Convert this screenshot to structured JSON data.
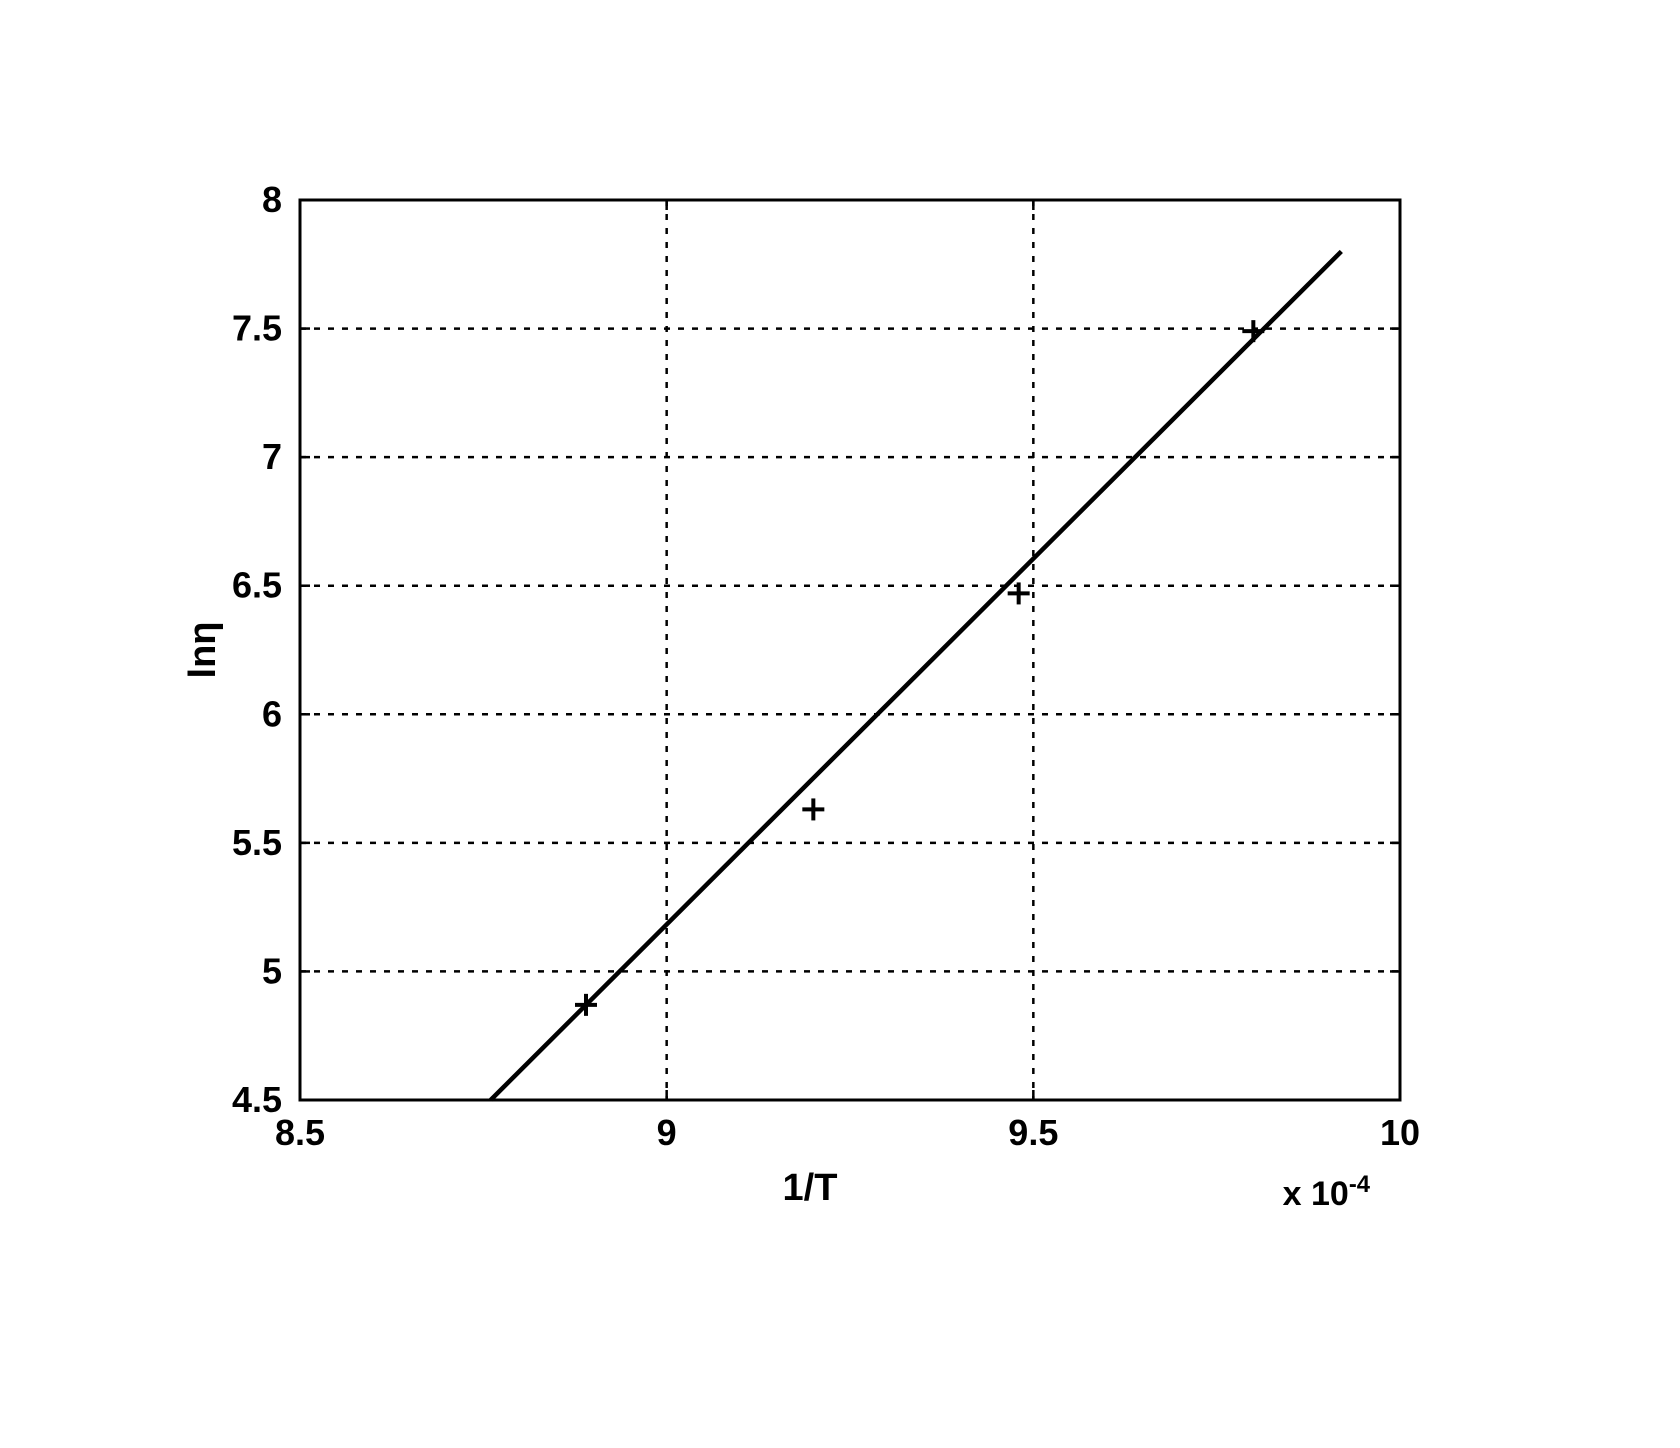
{
  "chart": {
    "type": "scatter-with-fit",
    "background_color": "#ffffff",
    "plot_border_color": "#000000",
    "plot_border_width": 3,
    "grid_color": "#000000",
    "grid_dash": "6,8",
    "grid_width": 2.5,
    "xlabel": "1/T",
    "ylabel": "lnη",
    "x_exponent_label": "x 10⁻⁴",
    "x_exponent_plain": "x 10",
    "x_exponent_sup": "-4",
    "label_fontsize": 38,
    "tick_fontsize": 36,
    "exp_fontsize": 34,
    "xlim": [
      8.5,
      10.0
    ],
    "ylim": [
      4.5,
      8.0
    ],
    "xticks": [
      8.5,
      9.0,
      9.5,
      10.0
    ],
    "xtick_labels": [
      "8.5",
      "9",
      "9.5",
      "10"
    ],
    "yticks": [
      4.5,
      5.0,
      5.5,
      6.0,
      6.5,
      7.0,
      7.5,
      8.0
    ],
    "ytick_labels": [
      "4.5",
      "5",
      "5.5",
      "6",
      "6.5",
      "7",
      "7.5",
      "8"
    ],
    "xgrid_lines": [
      9.0,
      9.5
    ],
    "ygrid_lines": [
      4.5,
      5.0,
      5.5,
      6.0,
      6.5,
      7.0,
      7.5
    ],
    "data_points": [
      {
        "x": 8.89,
        "y": 4.87
      },
      {
        "x": 9.2,
        "y": 5.63
      },
      {
        "x": 9.48,
        "y": 6.47
      },
      {
        "x": 9.8,
        "y": 7.49
      }
    ],
    "marker": {
      "type": "plus",
      "size": 22,
      "stroke": "#000000",
      "stroke_width": 4
    },
    "fit_line": {
      "x1": 8.76,
      "y1": 4.5,
      "x2": 9.92,
      "y2": 7.8,
      "stroke": "#000000",
      "stroke_width": 4.5
    },
    "tick_length": 10,
    "tick_width": 2.5
  }
}
